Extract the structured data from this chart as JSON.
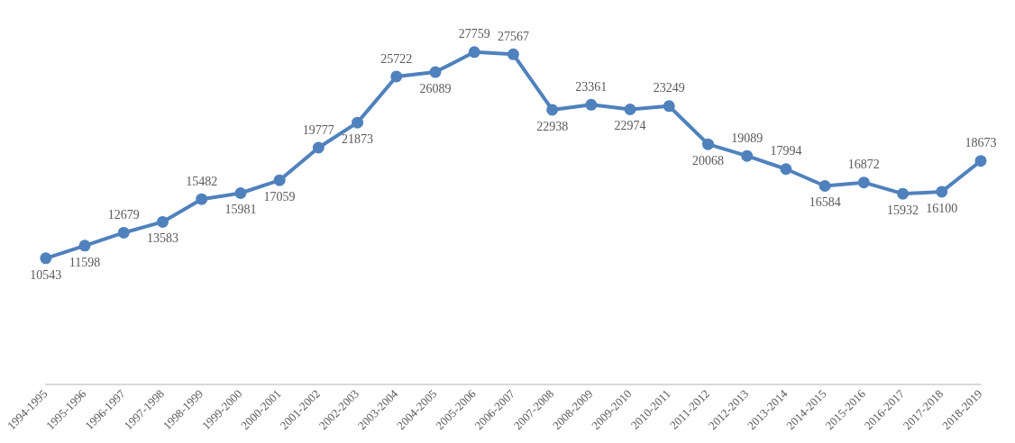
{
  "chart_data": {
    "type": "line",
    "categories": [
      "1994-1995",
      "1995-1996",
      "1996-1997",
      "1997-1998",
      "1998-1999",
      "1999-2000",
      "2000-2001",
      "2001-2002",
      "2002-2003",
      "2003-2004",
      "2004-2005",
      "2005-2006",
      "2006-2007",
      "2007-2008",
      "2008-2009",
      "2009-2010",
      "2010-2011",
      "2011-2012",
      "2012-2013",
      "2013-2014",
      "2014-2015",
      "2015-2016",
      "2016-2017",
      "2017-2018",
      "2018-2019"
    ],
    "series": [
      {
        "color": "#4f81bd",
        "values": [
          10543,
          11598,
          12679,
          13583,
          15482,
          15981,
          17059,
          19777,
          21873,
          25722,
          26089,
          27759,
          27567,
          22938,
          23361,
          22974,
          23249,
          20068,
          19089,
          17994,
          16584,
          16872,
          15932,
          16100,
          18673
        ]
      }
    ],
    "tick_labels": "x",
    "grid": false,
    "legend": false,
    "marker": "circle",
    "line_style": "solid",
    "data_labels": true
  }
}
